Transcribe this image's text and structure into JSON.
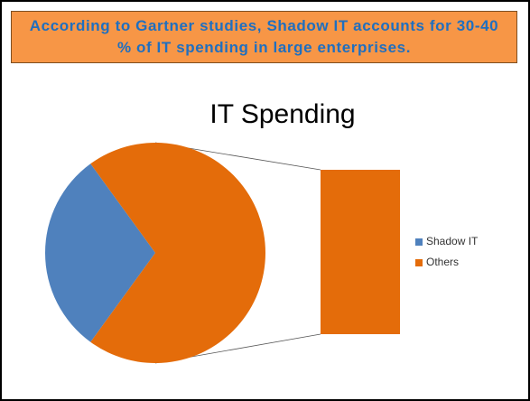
{
  "header": {
    "text": "According to Gartner studies, Shadow IT accounts for 30-40 % of IT spending in large enterprises."
  },
  "chart_data": {
    "type": "pie-of-bar",
    "title": "IT Spending",
    "categories": [
      "Shadow IT",
      "Others"
    ],
    "values": [
      30,
      70
    ],
    "colors": [
      "#4f81bd",
      "#e46c0a"
    ],
    "legend": "right"
  }
}
